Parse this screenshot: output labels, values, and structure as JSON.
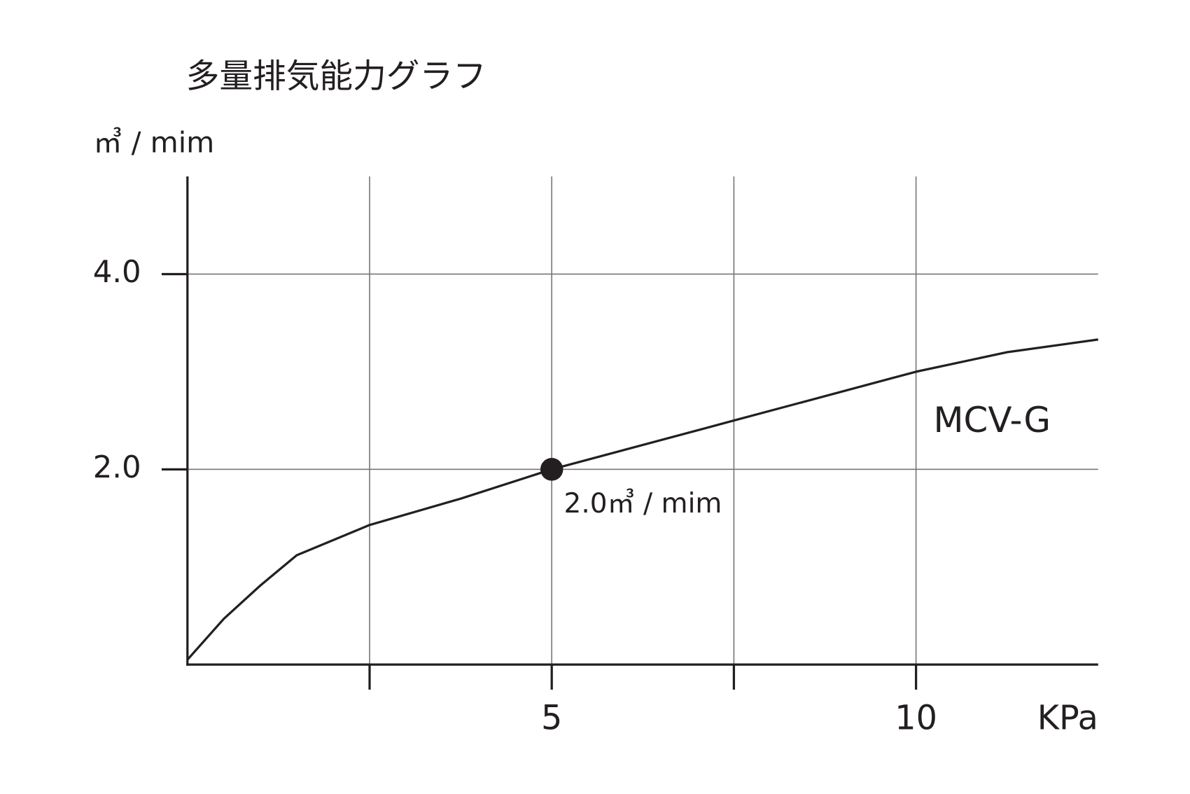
{
  "chart_data": {
    "type": "line",
    "title": "多量排気能力グラフ",
    "y_label": "㎥ / mim",
    "x_label": "KPa",
    "x": [
      0,
      0.5,
      1,
      1.5,
      2.5,
      3.75,
      5,
      7.5,
      10,
      11.25,
      12.5
    ],
    "series": [
      {
        "name": "MCV-G",
        "color": "#231f20",
        "values": [
          0.05,
          0.47,
          0.81,
          1.12,
          1.43,
          1.7,
          2.0,
          2.5,
          3.0,
          3.2,
          3.33
        ]
      }
    ],
    "xlim": [
      0,
      12.5
    ],
    "ylim": [
      0,
      5
    ],
    "xticks": [
      5,
      10
    ],
    "minor_xticks": [
      2.5,
      7.5
    ],
    "yticks": [
      {
        "value": 2,
        "label": "2.0"
      },
      {
        "value": 4,
        "label": "4.0"
      }
    ],
    "grid": true,
    "annotations": [
      {
        "x": 5,
        "y": 2.0,
        "label": "2.0㎥ / mim"
      }
    ]
  }
}
